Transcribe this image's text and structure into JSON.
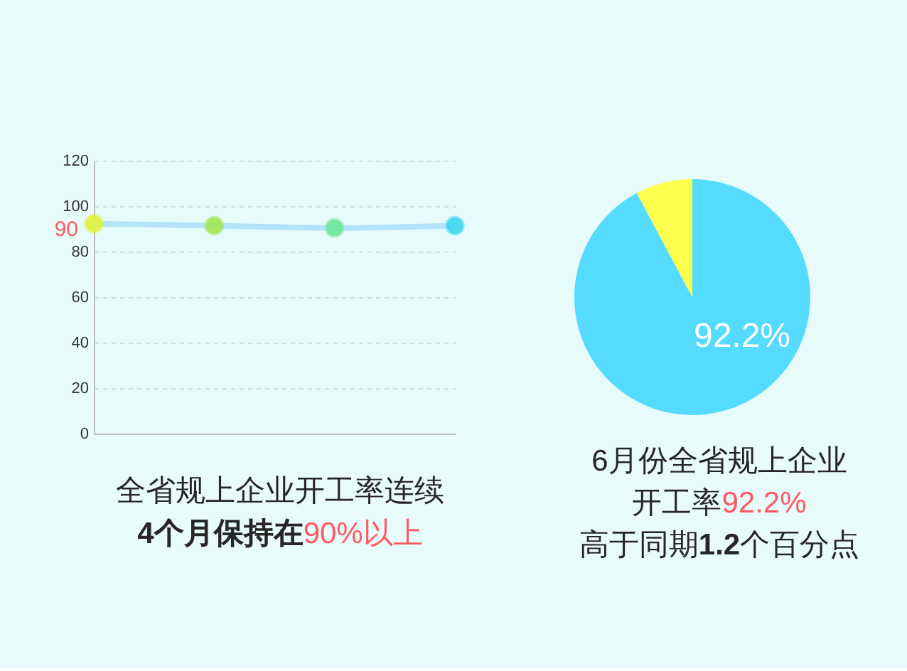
{
  "chart_data": [
    {
      "type": "line",
      "categories": [
        null,
        null,
        null,
        null
      ],
      "series": [
        {
          "color": "#b3e5fa",
          "colors": [
            "#e1f23c",
            "#a0e650",
            "#6ee59b",
            "#3dd7f0"
          ],
          "values": [
            92.3,
            91.4,
            90.4,
            91.4
          ]
        }
      ],
      "ylim": [
        0,
        120
      ],
      "yticks": [
        0,
        20,
        40,
        60,
        80,
        100,
        120
      ],
      "grid": "y",
      "tick_labels": "y",
      "marker": "circle",
      "line_style": "solid",
      "annotations": [
        "90",
        "全省规上企业开工率连续",
        "4个月保持在",
        "90%以上"
      ]
    },
    {
      "type": "pie",
      "categories": [
        null,
        null
      ],
      "values": [
        92.2,
        7.8
      ],
      "colors": [
        "#55dbff",
        "#ffff4d"
      ],
      "value_labels": [
        "92.2%",
        null
      ],
      "annotations": [
        "6月份全省规上企业",
        "开工率",
        "92.2%",
        "高于同期",
        "1.2",
        "个百分点"
      ]
    }
  ]
}
